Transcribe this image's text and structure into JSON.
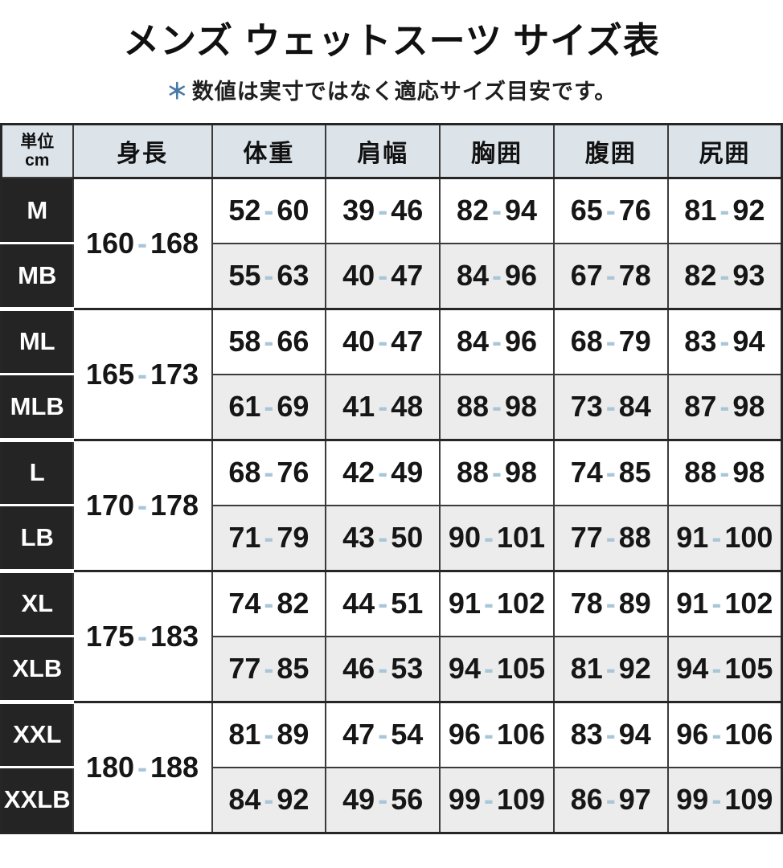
{
  "header": {
    "title": "メンズ ウェットスーツ サイズ表",
    "note_marker": "＊",
    "note_text": "数値は実寸ではなく適応サイズ目安です。"
  },
  "table": {
    "unit_label_line1": "単位",
    "unit_label_line2": "cm",
    "columns": [
      "身長",
      "体重",
      "肩幅",
      "胸囲",
      "腹囲",
      "尻囲"
    ],
    "groups": [
      {
        "height": "160-168",
        "rows": [
          {
            "size": "M",
            "weight": "52-60",
            "shoulder": "39-46",
            "chest": "82-94",
            "waist": "65-76",
            "hip": "81-92"
          },
          {
            "size": "MB",
            "weight": "55-63",
            "shoulder": "40-47",
            "chest": "84-96",
            "waist": "67-78",
            "hip": "82-93"
          }
        ]
      },
      {
        "height": "165-173",
        "rows": [
          {
            "size": "ML",
            "weight": "58-66",
            "shoulder": "40-47",
            "chest": "84-96",
            "waist": "68-79",
            "hip": "83-94"
          },
          {
            "size": "MLB",
            "weight": "61-69",
            "shoulder": "41-48",
            "chest": "88-98",
            "waist": "73-84",
            "hip": "87-98"
          }
        ]
      },
      {
        "height": "170-178",
        "rows": [
          {
            "size": "L",
            "weight": "68-76",
            "shoulder": "42-49",
            "chest": "88-98",
            "waist": "74-85",
            "hip": "88-98"
          },
          {
            "size": "LB",
            "weight": "71-79",
            "shoulder": "43-50",
            "chest": "90-101",
            "waist": "77-88",
            "hip": "91-100"
          }
        ]
      },
      {
        "height": "175-183",
        "rows": [
          {
            "size": "XL",
            "weight": "74-82",
            "shoulder": "44-51",
            "chest": "91-102",
            "waist": "78-89",
            "hip": "91-102"
          },
          {
            "size": "XLB",
            "weight": "77-85",
            "shoulder": "46-53",
            "chest": "94-105",
            "waist": "81-92",
            "hip": "94-105"
          }
        ]
      },
      {
        "height": "180-188",
        "rows": [
          {
            "size": "XXL",
            "weight": "81-89",
            "shoulder": "47-54",
            "chest": "96-106",
            "waist": "83-94",
            "hip": "96-106"
          },
          {
            "size": "XXLB",
            "weight": "84-92",
            "shoulder": "49-56",
            "chest": "99-109",
            "waist": "86-97",
            "hip": "99-109"
          }
        ]
      }
    ]
  },
  "colors": {
    "header_bg": "#dce4ea",
    "size_cell_bg": "#242424",
    "alt_row_bg": "#ececec",
    "range_dash": "#a9c6d8",
    "note_marker_blue": "#4779a5",
    "border": "#3b3b3b"
  }
}
